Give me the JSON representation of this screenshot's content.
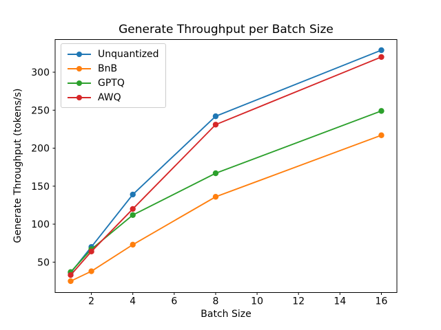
{
  "chart_data": {
    "type": "line",
    "title": "Generate Throughput per Batch Size",
    "xlabel": "Batch Size",
    "ylabel": "Generate Throughput (tokens/s)",
    "x": [
      1,
      2,
      4,
      8,
      16
    ],
    "series": [
      {
        "name": "Unquantized",
        "color": "#1f77b4",
        "values": [
          36,
          70,
          139,
          242,
          329
        ]
      },
      {
        "name": "BnB",
        "color": "#ff7f0e",
        "values": [
          25,
          38,
          73,
          136,
          217
        ]
      },
      {
        "name": "GPTQ",
        "color": "#2ca02c",
        "values": [
          37,
          67,
          112,
          167,
          249
        ]
      },
      {
        "name": "AWQ",
        "color": "#d62728",
        "values": [
          33,
          64,
          120,
          231,
          320
        ]
      }
    ],
    "x_ticks": [
      2,
      4,
      6,
      8,
      10,
      12,
      14,
      16
    ],
    "y_ticks": [
      50,
      100,
      150,
      200,
      250,
      300
    ],
    "xlim": [
      0.25,
      16.75
    ],
    "ylim": [
      10,
      343
    ],
    "grid": false,
    "legend_position": "upper left",
    "marker": "o",
    "axes_color": "#000000",
    "background_color": "#ffffff"
  }
}
